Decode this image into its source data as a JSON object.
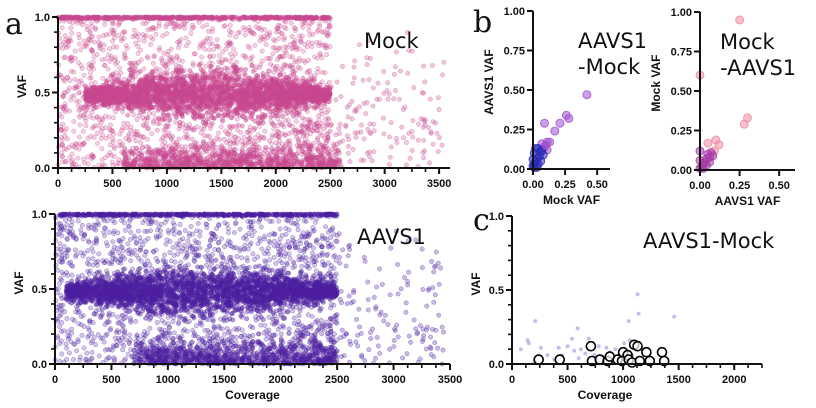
{
  "figure": {
    "panel_letters": [
      "a",
      "b",
      "c"
    ]
  },
  "chart_data": [
    {
      "id": "a-mock",
      "panel": "a",
      "type": "scatter",
      "title": "",
      "annotation": "Mock",
      "xlabel": "",
      "ylabel": "VAF",
      "xlim": [
        0,
        3600
      ],
      "ylim": [
        0,
        1.0
      ],
      "xticks": [
        0,
        500,
        1000,
        1500,
        2000,
        2500,
        3000,
        3500
      ],
      "xtick_labels": [
        "0",
        "500",
        "1000",
        "1500",
        "2000",
        "2500",
        "3000",
        "3500"
      ],
      "yticks": [
        0.0,
        0.5,
        1.0
      ],
      "ytick_labels": [
        "0.0",
        "0.5",
        "1.0"
      ],
      "x_minor_step": 125,
      "y_minor_step": 0.1,
      "color": "#c8488f",
      "point_alpha": 0.28,
      "distribution": {
        "description": "Dense cloud of variants: heterozygous band centered at VAF 0.5 spanning coverage ~250–2500, homozygous band at VAF 1.0 spanning coverage 0–2500, dense low-VAF cluster near 0 across coverage 600–2600, sparse scatter out to coverage ~3550",
        "bands": [
          {
            "vaf_center": 0.5,
            "vaf_spread": 0.06,
            "coverage_range": [
              250,
              2500
            ],
            "density": "very high"
          },
          {
            "vaf_center": 1.0,
            "vaf_spread": 0.005,
            "coverage_range": [
              0,
              2500
            ],
            "density": "high"
          },
          {
            "vaf_center": 0.02,
            "vaf_spread": 0.05,
            "coverage_range": [
              600,
              2600
            ],
            "density": "high"
          }
        ],
        "coverage_max_observed": 3550
      }
    },
    {
      "id": "a-aavs1",
      "panel": "a",
      "type": "scatter",
      "title": "",
      "annotation": "AAVS1",
      "xlabel": "Coverage",
      "ylabel": "VAF",
      "xlim": [
        0,
        3500
      ],
      "ylim": [
        0,
        1.0
      ],
      "xticks": [
        0,
        500,
        1000,
        1500,
        2000,
        2500,
        3000,
        3500
      ],
      "xtick_labels": [
        "0",
        "500",
        "1000",
        "1500",
        "2000",
        "2500",
        "3000",
        "3500"
      ],
      "yticks": [
        0.0,
        0.5,
        1.0
      ],
      "ytick_labels": [
        "0.0",
        "0.5",
        "1.0"
      ],
      "x_minor_step": 125,
      "y_minor_step": 0.1,
      "color": "#4b1fa0",
      "point_alpha": 0.28,
      "distribution": {
        "description": "Same pattern as Mock: heterozygous band at VAF 0.5 over coverage ~100–2500, homozygous band at 1.0 up to ~2500, low-VAF cluster near 0, sparse points out to coverage ~3450",
        "bands": [
          {
            "vaf_center": 0.5,
            "vaf_spread": 0.06,
            "coverage_range": [
              100,
              2500
            ],
            "density": "very high"
          },
          {
            "vaf_center": 1.0,
            "vaf_spread": 0.005,
            "coverage_range": [
              0,
              2500
            ],
            "density": "high"
          },
          {
            "vaf_center": 0.02,
            "vaf_spread": 0.05,
            "coverage_range": [
              700,
              2500
            ],
            "density": "high"
          }
        ],
        "coverage_max_observed": 3450
      }
    },
    {
      "id": "b-aavs1-mock",
      "panel": "b",
      "type": "scatter",
      "annotation": [
        "AAVS1",
        "-Mock"
      ],
      "xlabel": "Mock VAF",
      "ylabel": "AAVS1 VAF",
      "xlim": [
        0,
        0.6
      ],
      "ylim": [
        0,
        1.0
      ],
      "xticks": [
        0.0,
        0.25,
        0.5
      ],
      "xtick_labels": [
        "0.00",
        "0.25",
        "0.50"
      ],
      "yticks": [
        0.0,
        0.25,
        0.5,
        0.75,
        1.0
      ],
      "ytick_labels": [
        "0.00",
        "0.25",
        "0.50",
        "0.75",
        "1.00"
      ],
      "color_low": "#2a2ab8",
      "color_high": "#a050d0",
      "points": [
        {
          "x": 0.42,
          "y": 0.47
        },
        {
          "x": 0.26,
          "y": 0.34
        },
        {
          "x": 0.28,
          "y": 0.32
        },
        {
          "x": 0.21,
          "y": 0.29
        },
        {
          "x": 0.09,
          "y": 0.29
        },
        {
          "x": 0.17,
          "y": 0.24
        },
        {
          "x": 0.13,
          "y": 0.17
        },
        {
          "x": 0.11,
          "y": 0.17
        },
        {
          "x": 0.07,
          "y": 0.16
        },
        {
          "x": 0.09,
          "y": 0.14
        },
        {
          "x": 0.11,
          "y": 0.12
        },
        {
          "x": 0.06,
          "y": 0.11
        },
        {
          "x": 0.08,
          "y": 0.09
        },
        {
          "x": 0.04,
          "y": 0.13
        },
        {
          "x": 0.02,
          "y": 0.13
        },
        {
          "x": 0.05,
          "y": 0.08
        },
        {
          "x": 0.03,
          "y": 0.07
        },
        {
          "x": 0.01,
          "y": 0.1
        },
        {
          "x": 0.02,
          "y": 0.05
        },
        {
          "x": 0.04,
          "y": 0.03
        },
        {
          "x": 0.01,
          "y": 0.03
        },
        {
          "x": 0.0,
          "y": 0.06
        },
        {
          "x": 0.0,
          "y": 0.02
        },
        {
          "x": 0.01,
          "y": 0.01
        },
        {
          "x": 0.03,
          "y": 0.01
        },
        {
          "x": 0.06,
          "y": 0.05
        },
        {
          "x": 0.07,
          "y": 0.12
        },
        {
          "x": 0.1,
          "y": 0.15
        }
      ]
    },
    {
      "id": "b-mock-aavs1",
      "panel": "b",
      "type": "scatter",
      "annotation": [
        "Mock",
        "-AAVS1"
      ],
      "xlabel": "AAVS1 VAF",
      "ylabel": "Mock VAF",
      "xlim": [
        0,
        0.6
      ],
      "ylim": [
        0,
        1.0
      ],
      "xticks": [
        0.0,
        0.25,
        0.5
      ],
      "xtick_labels": [
        "0.00",
        "0.25",
        "0.50"
      ],
      "yticks": [
        0.0,
        0.25,
        0.5,
        0.75,
        1.0
      ],
      "ytick_labels": [
        "0.00",
        "0.25",
        "0.50",
        "0.75",
        "1.00"
      ],
      "color_low": "#a83aa8",
      "color_high": "#f08aa0",
      "points": [
        {
          "x": 0.25,
          "y": 0.95
        },
        {
          "x": 0.0,
          "y": 0.6
        },
        {
          "x": 0.3,
          "y": 0.33
        },
        {
          "x": 0.28,
          "y": 0.29
        },
        {
          "x": 0.1,
          "y": 0.19
        },
        {
          "x": 0.05,
          "y": 0.17
        },
        {
          "x": 0.12,
          "y": 0.16
        },
        {
          "x": 0.0,
          "y": 0.12
        },
        {
          "x": 0.09,
          "y": 0.12
        },
        {
          "x": 0.07,
          "y": 0.11
        },
        {
          "x": 0.05,
          "y": 0.1
        },
        {
          "x": 0.06,
          "y": 0.08
        },
        {
          "x": 0.04,
          "y": 0.07
        },
        {
          "x": 0.0,
          "y": 0.06
        },
        {
          "x": 0.03,
          "y": 0.05
        },
        {
          "x": 0.02,
          "y": 0.04
        },
        {
          "x": 0.01,
          "y": 0.02
        },
        {
          "x": 0.0,
          "y": 0.01
        },
        {
          "x": 0.02,
          "y": 0.01
        },
        {
          "x": 0.04,
          "y": 0.03
        },
        {
          "x": 0.08,
          "y": 0.09
        },
        {
          "x": 0.06,
          "y": 0.05
        }
      ]
    },
    {
      "id": "c-aavs1-mock",
      "panel": "c",
      "type": "scatter",
      "annotation": "AAVS1-Mock",
      "xlabel": "Coverage",
      "ylabel": "VAF",
      "xlim": [
        0,
        2250
      ],
      "ylim": [
        0,
        1.0
      ],
      "xticks": [
        0,
        500,
        1000,
        1500,
        2000
      ],
      "xtick_labels": [
        "0",
        "500",
        "1000",
        "1500",
        "2000"
      ],
      "yticks": [
        0.0,
        0.5,
        1.0
      ],
      "ytick_labels": [
        "0.0",
        "0.5",
        "1.0"
      ],
      "x_minor_step": 125,
      "y_minor_step": 0.1,
      "series": [
        {
          "name": "filled",
          "color": "#8a6ad0",
          "points": [
            {
              "x": 1130,
              "y": 0.47
            },
            {
              "x": 1140,
              "y": 0.34
            },
            {
              "x": 1460,
              "y": 0.32
            },
            {
              "x": 210,
              "y": 0.29
            },
            {
              "x": 1050,
              "y": 0.29
            },
            {
              "x": 590,
              "y": 0.24
            },
            {
              "x": 540,
              "y": 0.17
            },
            {
              "x": 690,
              "y": 0.17
            },
            {
              "x": 140,
              "y": 0.16
            },
            {
              "x": 150,
              "y": 0.14
            },
            {
              "x": 80,
              "y": 0.1
            },
            {
              "x": 260,
              "y": 0.11
            },
            {
              "x": 420,
              "y": 0.11
            },
            {
              "x": 500,
              "y": 0.12
            },
            {
              "x": 560,
              "y": 0.09
            },
            {
              "x": 620,
              "y": 0.1
            },
            {
              "x": 780,
              "y": 0.12
            },
            {
              "x": 850,
              "y": 0.11
            },
            {
              "x": 930,
              "y": 0.1
            },
            {
              "x": 1010,
              "y": 0.14
            },
            {
              "x": 1060,
              "y": 0.16
            },
            {
              "x": 1170,
              "y": 0.1
            },
            {
              "x": 1230,
              "y": 0.05
            },
            {
              "x": 320,
              "y": 0.06
            },
            {
              "x": 450,
              "y": 0.06
            },
            {
              "x": 660,
              "y": 0.07
            },
            {
              "x": 740,
              "y": 0.06
            },
            {
              "x": 820,
              "y": 0.05
            },
            {
              "x": 880,
              "y": 0.08
            },
            {
              "x": 960,
              "y": 0.04
            },
            {
              "x": 1080,
              "y": 0.06
            },
            {
              "x": 1270,
              "y": 0.03
            },
            {
              "x": 200,
              "y": 0.01
            },
            {
              "x": 380,
              "y": 0.03
            },
            {
              "x": 600,
              "y": 0.04
            },
            {
              "x": 770,
              "y": 0.03
            },
            {
              "x": 900,
              "y": 0.02
            },
            {
              "x": 1120,
              "y": 0.03
            },
            {
              "x": 1190,
              "y": 0.02
            }
          ]
        },
        {
          "name": "open",
          "color": "#000000",
          "points": [
            {
              "x": 240,
              "y": 0.03
            },
            {
              "x": 430,
              "y": 0.03
            },
            {
              "x": 710,
              "y": 0.12
            },
            {
              "x": 720,
              "y": 0.02
            },
            {
              "x": 790,
              "y": 0.03
            },
            {
              "x": 860,
              "y": 0.02
            },
            {
              "x": 880,
              "y": 0.05
            },
            {
              "x": 950,
              "y": 0.03
            },
            {
              "x": 990,
              "y": 0.02
            },
            {
              "x": 1000,
              "y": 0.08
            },
            {
              "x": 1040,
              "y": 0.06
            },
            {
              "x": 1050,
              "y": 0.03
            },
            {
              "x": 1080,
              "y": 0.01
            },
            {
              "x": 1100,
              "y": 0.13
            },
            {
              "x": 1130,
              "y": 0.12
            },
            {
              "x": 1150,
              "y": 0.02
            },
            {
              "x": 1210,
              "y": 0.08
            },
            {
              "x": 1240,
              "y": 0.02
            },
            {
              "x": 1350,
              "y": 0.08
            },
            {
              "x": 1370,
              "y": 0.02
            }
          ]
        }
      ]
    }
  ]
}
